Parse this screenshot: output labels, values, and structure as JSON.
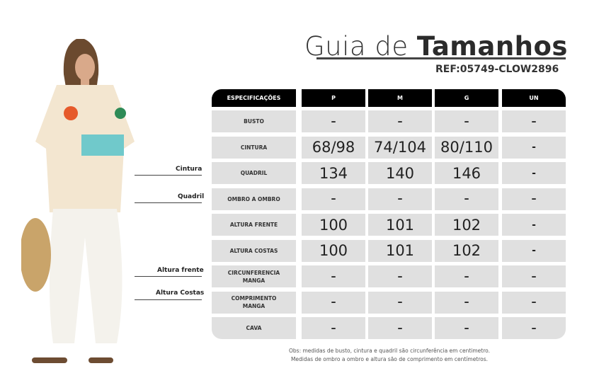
{
  "header": {
    "title_light": "Guia de ",
    "title_bold": "Tamanhos",
    "ref": "REF:05749-CLOW2896"
  },
  "table": {
    "columns": [
      "ESPECIFICAÇÕES",
      "P",
      "M",
      "G",
      "UN"
    ],
    "rows": [
      {
        "label": "BUSTO",
        "values": [
          "–",
          "–",
          "–",
          "–"
        ]
      },
      {
        "label": "CINTURA",
        "values": [
          "68/98",
          "74/104",
          "80/110",
          "-"
        ]
      },
      {
        "label": "QUADRIL",
        "values": [
          "134",
          "140",
          "146",
          "-"
        ]
      },
      {
        "label": "OMBRO A OMBRO",
        "values": [
          "–",
          "–",
          "–",
          "–"
        ]
      },
      {
        "label": "ALTURA FRENTE",
        "values": [
          "100",
          "101",
          "102",
          "-"
        ]
      },
      {
        "label": "ALTURA COSTAS",
        "values": [
          "100",
          "101",
          "102",
          "-"
        ]
      },
      {
        "label": "CIRCUNFERENCIA MANGA",
        "values": [
          "–",
          "–",
          "–",
          "–"
        ]
      },
      {
        "label": "COMPRIMENTO MANGA",
        "values": [
          "–",
          "–",
          "–",
          "–"
        ]
      },
      {
        "label": "CAVA",
        "values": [
          "–",
          "–",
          "–",
          "–"
        ]
      }
    ]
  },
  "side_labels": [
    "Cintura",
    "Quadril",
    "Altura frente",
    "Altura Costas"
  ],
  "notes": [
    "Obs: medidas de busto, cintura e quadril são circunferência em centimetro.",
    "Medidas de ombro a ombro e altura são de comprimento em centímetros."
  ]
}
